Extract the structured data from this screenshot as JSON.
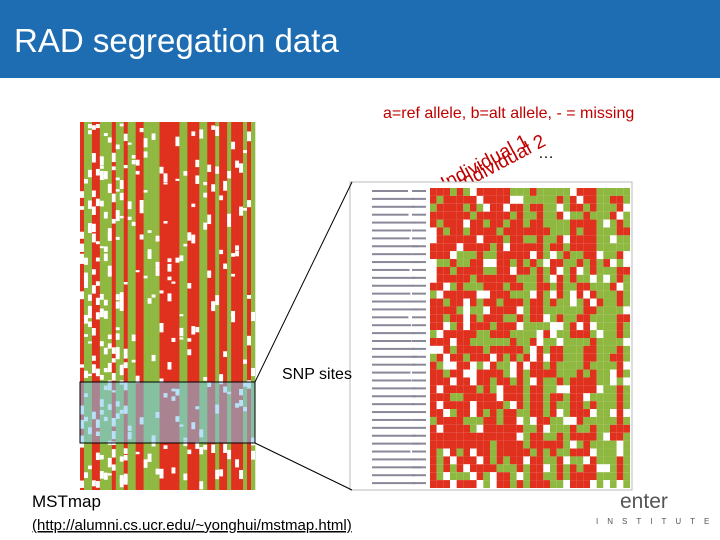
{
  "header": {
    "title": "RAD segregation data"
  },
  "legend_note": "a=ref allele, b=alt allele, - = missing",
  "column_labels": [
    "Individual 1",
    "Individual 2",
    "…"
  ],
  "row_label": "SNP sites",
  "footer": {
    "tool": "MSTmap",
    "link": "(http://alumni.cs.ucr.edu/~yonghui/mstmap.html)"
  },
  "logo": {
    "name": "enter",
    "subtitle": "INSTITUTE"
  }
}
